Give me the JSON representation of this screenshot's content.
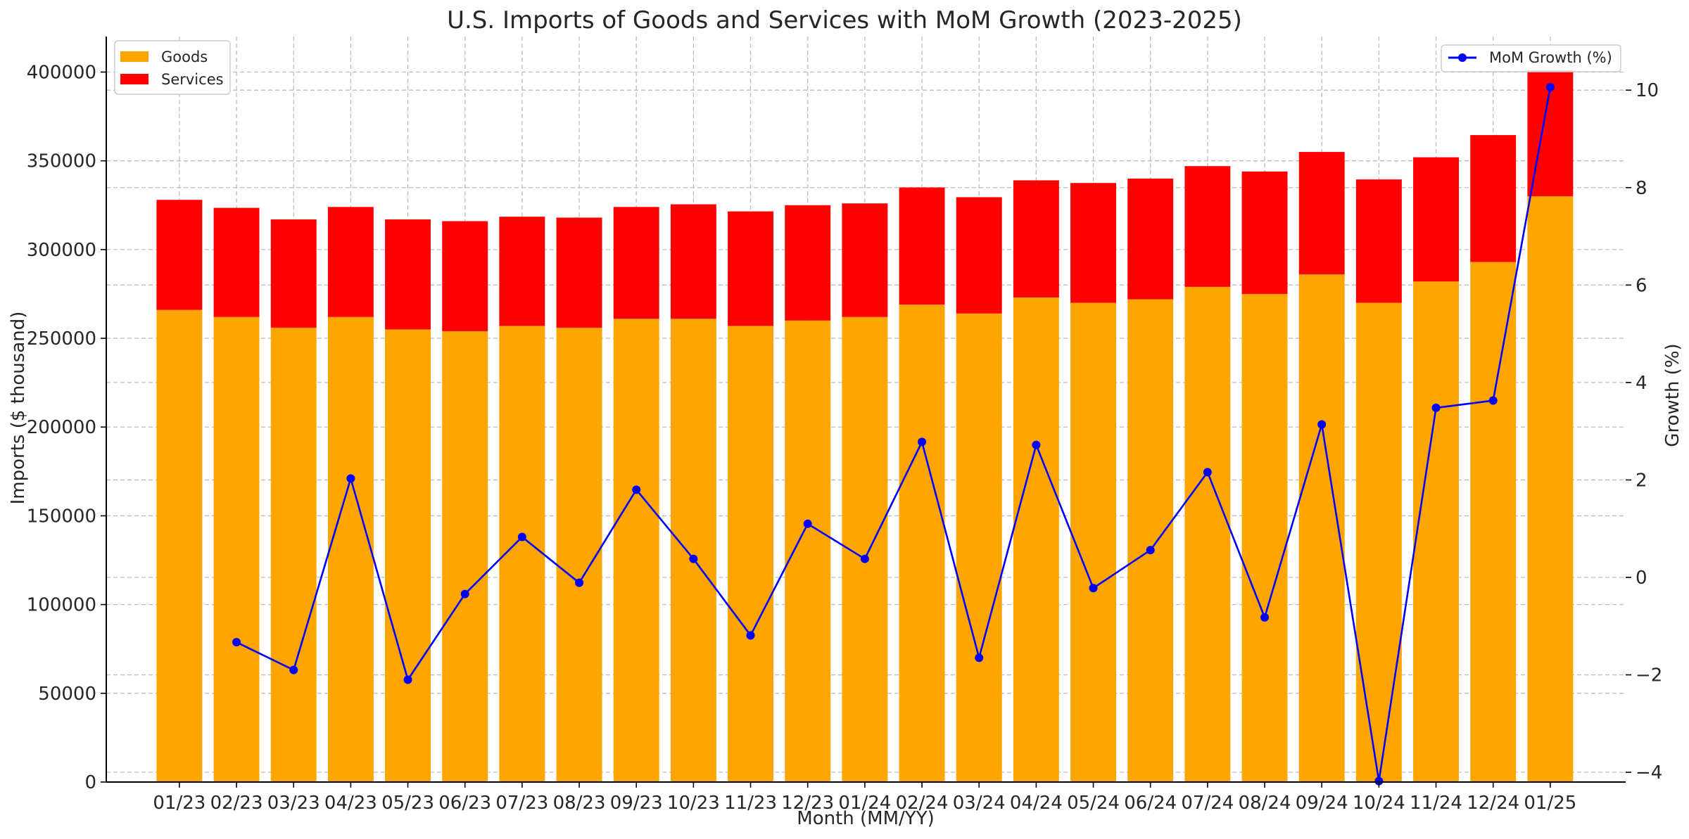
{
  "chart_data": {
    "type": "bar",
    "title": "U.S. Imports of Goods and Services with MoM Growth (2023-2025)",
    "xlabel": "Month (MM/YY)",
    "ylabel": "Imports ($ thousand)",
    "y2label": "Growth (%)",
    "categories": [
      "01/23",
      "02/23",
      "03/23",
      "04/23",
      "05/23",
      "06/23",
      "07/23",
      "08/23",
      "09/23",
      "10/23",
      "11/23",
      "12/23",
      "01/24",
      "02/24",
      "03/24",
      "04/24",
      "05/24",
      "06/24",
      "07/24",
      "08/24",
      "09/24",
      "10/24",
      "11/24",
      "12/24",
      "01/25"
    ],
    "stacked": true,
    "series": [
      {
        "name": "Goods",
        "type": "bar",
        "axis": "left",
        "color": "#ffa500",
        "values": [
          266000,
          262000,
          256000,
          262000,
          255000,
          254000,
          257000,
          256000,
          261000,
          261000,
          257000,
          260000,
          262000,
          269000,
          264000,
          273000,
          270000,
          272000,
          279000,
          275000,
          286000,
          270000,
          282000,
          293000,
          330000
        ]
      },
      {
        "name": "Services",
        "type": "bar",
        "axis": "left",
        "color": "#ff0000",
        "values": [
          62000,
          61500,
          61000,
          62000,
          62000,
          62000,
          61500,
          62000,
          63000,
          64500,
          64500,
          65000,
          64000,
          66000,
          65500,
          66000,
          67500,
          68000,
          68000,
          69000,
          69000,
          69500,
          70000,
          71500,
          71000
        ]
      },
      {
        "name": "MoM Growth (%)",
        "type": "line",
        "axis": "right",
        "color": "#0000ff",
        "marker": "circle",
        "values": [
          null,
          -1.33,
          -1.9,
          2.03,
          -2.1,
          -0.34,
          0.83,
          -0.11,
          1.8,
          0.38,
          -1.19,
          1.1,
          0.38,
          2.78,
          -1.65,
          2.72,
          -0.22,
          0.56,
          2.16,
          -0.82,
          3.14,
          -4.18,
          3.48,
          3.63,
          10.06
        ]
      }
    ],
    "ylim": [
      0,
      420000
    ],
    "y2lim": [
      -4.2,
      11.1
    ],
    "yticks": [
      0,
      50000,
      100000,
      150000,
      200000,
      250000,
      300000,
      350000,
      400000
    ],
    "y2ticks": [
      -4,
      -2,
      0,
      2,
      4,
      6,
      8,
      10
    ],
    "grid": true,
    "legend_bars": "top-left",
    "legend_line": "top-right"
  }
}
